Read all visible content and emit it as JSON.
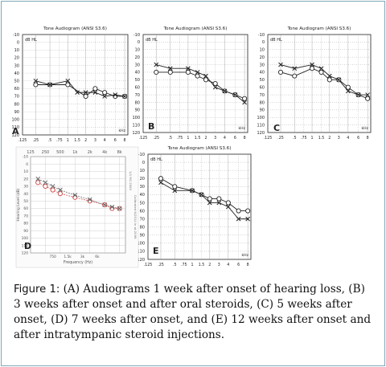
{
  "chart_data": [
    {
      "id": "A",
      "type": "line",
      "title": "Tone Audiogram (ANSI S3.6)",
      "unit_label": "dB HL",
      "freq_unit": "kHz",
      "x_ticks": [
        ".125",
        ".25",
        ".5",
        ".75",
        "1",
        "1.5",
        "2",
        "3",
        "4",
        "6",
        "8"
      ],
      "y_ticks": [
        "-10",
        "0",
        "10",
        "20",
        "30",
        "40",
        "50",
        "60",
        "70",
        "80",
        "90",
        "100",
        "110",
        "120"
      ],
      "ylim": [
        -10,
        120
      ],
      "series": [
        {
          "marker": "o",
          "points": [
            [
              ".25",
              55
            ],
            [
              ".5",
              55
            ],
            [
              "1",
              55
            ],
            [
              "2",
              70
            ],
            [
              "3",
              60
            ],
            [
              "4",
              65
            ],
            [
              "6",
              70
            ],
            [
              "8",
              70
            ]
          ]
        },
        {
          "marker": "x",
          "points": [
            [
              ".25",
              50
            ],
            [
              ".5",
              55
            ],
            [
              "1",
              50
            ],
            [
              "1.5",
              65
            ],
            [
              "2",
              65
            ],
            [
              "3",
              65
            ],
            [
              "4",
              70
            ],
            [
              "6",
              68
            ],
            [
              "8",
              70
            ]
          ]
        }
      ]
    },
    {
      "id": "B",
      "type": "line",
      "title": "Tone Audiogram (ANSI S3.6)",
      "unit_label": "dB HL",
      "freq_unit": "kHz",
      "x_ticks": [
        ".125",
        ".25",
        ".5",
        ".75",
        "1",
        "1.5",
        "2",
        "3",
        "4",
        "6",
        "8"
      ],
      "y_ticks": [
        "-10",
        "0",
        "10",
        "20",
        "30",
        "40",
        "50",
        "60",
        "70",
        "80",
        "90",
        "100",
        "110",
        "120"
      ],
      "ylim": [
        -10,
        120
      ],
      "series": [
        {
          "marker": "o",
          "points": [
            [
              ".25",
              40
            ],
            [
              ".5",
              40
            ],
            [
              "1",
              40
            ],
            [
              "1.5",
              45
            ],
            [
              "2",
              50
            ],
            [
              "3",
              55
            ],
            [
              "4",
              65
            ],
            [
              "6",
              70
            ],
            [
              "8",
              75
            ]
          ]
        },
        {
          "marker": "x",
          "points": [
            [
              ".25",
              30
            ],
            [
              ".5",
              35
            ],
            [
              "1",
              35
            ],
            [
              "1.5",
              40
            ],
            [
              "2",
              45
            ],
            [
              "3",
              60
            ],
            [
              "4",
              65
            ],
            [
              "6",
              70
            ],
            [
              "8",
              80
            ]
          ]
        }
      ]
    },
    {
      "id": "C",
      "type": "line",
      "title": "Tone Audiogram (ANSI S3.6)",
      "unit_label": "dB HL",
      "freq_unit": "kHz",
      "x_ticks": [
        ".125",
        ".25",
        ".5",
        ".75",
        "1",
        "1.5",
        "2",
        "3",
        "4",
        "6",
        "8"
      ],
      "y_ticks": [
        "-10",
        "0",
        "10",
        "20",
        "30",
        "40",
        "50",
        "60",
        "70",
        "80",
        "90",
        "100",
        "110",
        "120"
      ],
      "ylim": [
        -10,
        120
      ],
      "series": [
        {
          "marker": "o",
          "points": [
            [
              ".25",
              40
            ],
            [
              ".5",
              45
            ],
            [
              "1",
              35
            ],
            [
              "1.5",
              40
            ],
            [
              "2",
              50
            ],
            [
              "3",
              50
            ],
            [
              "4",
              60
            ],
            [
              "6",
              70
            ],
            [
              "8",
              75
            ]
          ]
        },
        {
          "marker": "x",
          "points": [
            [
              ".25",
              30
            ],
            [
              ".5",
              35
            ],
            [
              "1",
              30
            ],
            [
              "1.5",
              35
            ],
            [
              "2",
              45
            ],
            [
              "3",
              50
            ],
            [
              "4",
              65
            ],
            [
              "6",
              70
            ],
            [
              "8",
              70
            ]
          ]
        }
      ]
    },
    {
      "id": "D",
      "type": "line",
      "title": "",
      "freq_top": [
        "125",
        "250",
        "500",
        "1k",
        "2k",
        "4k",
        "8k"
      ],
      "freq_bottom": [
        "",
        "",
        "750",
        "1.5k",
        "3k",
        "6k"
      ],
      "x_axis_label": "Frequency (Hz)",
      "y_axis_label": "Hearing Level (dB)",
      "right_label_1": "1/1 RG 2000",
      "right_label_2": "Calibrated 6/2014 in at:2099",
      "y_ticks": [
        "-10",
        "0",
        "10",
        "20",
        "30",
        "40",
        "50",
        "60",
        "70",
        "80",
        "90",
        "100",
        "110",
        "120"
      ],
      "ylim": [
        -10,
        120
      ],
      "series": [
        {
          "marker": "o",
          "color": "#cc4444",
          "points": [
            [
              0.5,
              25
            ],
            [
              1,
              30
            ],
            [
              1.5,
              35
            ],
            [
              2,
              40
            ],
            [
              3,
              45
            ],
            [
              4,
              50
            ],
            [
              5,
              55
            ],
            [
              5.5,
              60
            ],
            [
              6,
              60
            ]
          ]
        },
        {
          "marker": "x",
          "color": "#666666",
          "points": [
            [
              0.5,
              20
            ],
            [
              1,
              25
            ],
            [
              1.5,
              30
            ],
            [
              2,
              35
            ],
            [
              3,
              42
            ],
            [
              4,
              48
            ],
            [
              5,
              55
            ],
            [
              5.5,
              58
            ],
            [
              6,
              60
            ]
          ]
        }
      ]
    },
    {
      "id": "E",
      "type": "line",
      "title": "Tone Audiogram (ANSI S3.6)",
      "unit_label": "dB HL",
      "freq_unit": "kHz",
      "x_ticks": [
        ".125",
        ".25",
        ".5",
        ".75",
        "1",
        "1.5",
        "2",
        "3",
        "4",
        "6",
        "8"
      ],
      "y_ticks": [
        "-10",
        "0",
        "10",
        "20",
        "30",
        "40",
        "50",
        "60",
        "70",
        "80",
        "90",
        "100",
        "110",
        "120"
      ],
      "ylim": [
        -10,
        120
      ],
      "series": [
        {
          "marker": "o",
          "points": [
            [
              ".25",
              20
            ],
            [
              ".5",
              30
            ],
            [
              "1",
              35
            ],
            [
              "1.5",
              40
            ],
            [
              "2",
              45
            ],
            [
              "3",
              45
            ],
            [
              "4",
              50
            ],
            [
              "6",
              60
            ],
            [
              "8",
              60
            ]
          ]
        },
        {
          "marker": "x",
          "points": [
            [
              ".25",
              25
            ],
            [
              ".5",
              35
            ],
            [
              "1",
              35
            ],
            [
              "1.5",
              40
            ],
            [
              "2",
              50
            ],
            [
              "3",
              50
            ],
            [
              "4",
              55
            ],
            [
              "6",
              70
            ],
            [
              "8",
              70
            ]
          ]
        }
      ]
    }
  ],
  "caption": {
    "label": "Figure 1:",
    "text": " (A) Audiograms 1 week after onset of hearing loss, (B) 3 weeks after onset and after oral steroids, (C) 5 weeks after onset, (D) 7 weeks after onset, and (E) 12 weeks after onset and after intratympanic steroid injections."
  },
  "colors": {
    "ink": "#222222",
    "grid": "#8a8a8a",
    "frame": "#7fa9b8",
    "panelD_o": "#cc4444",
    "panelD_x": "#666666"
  }
}
